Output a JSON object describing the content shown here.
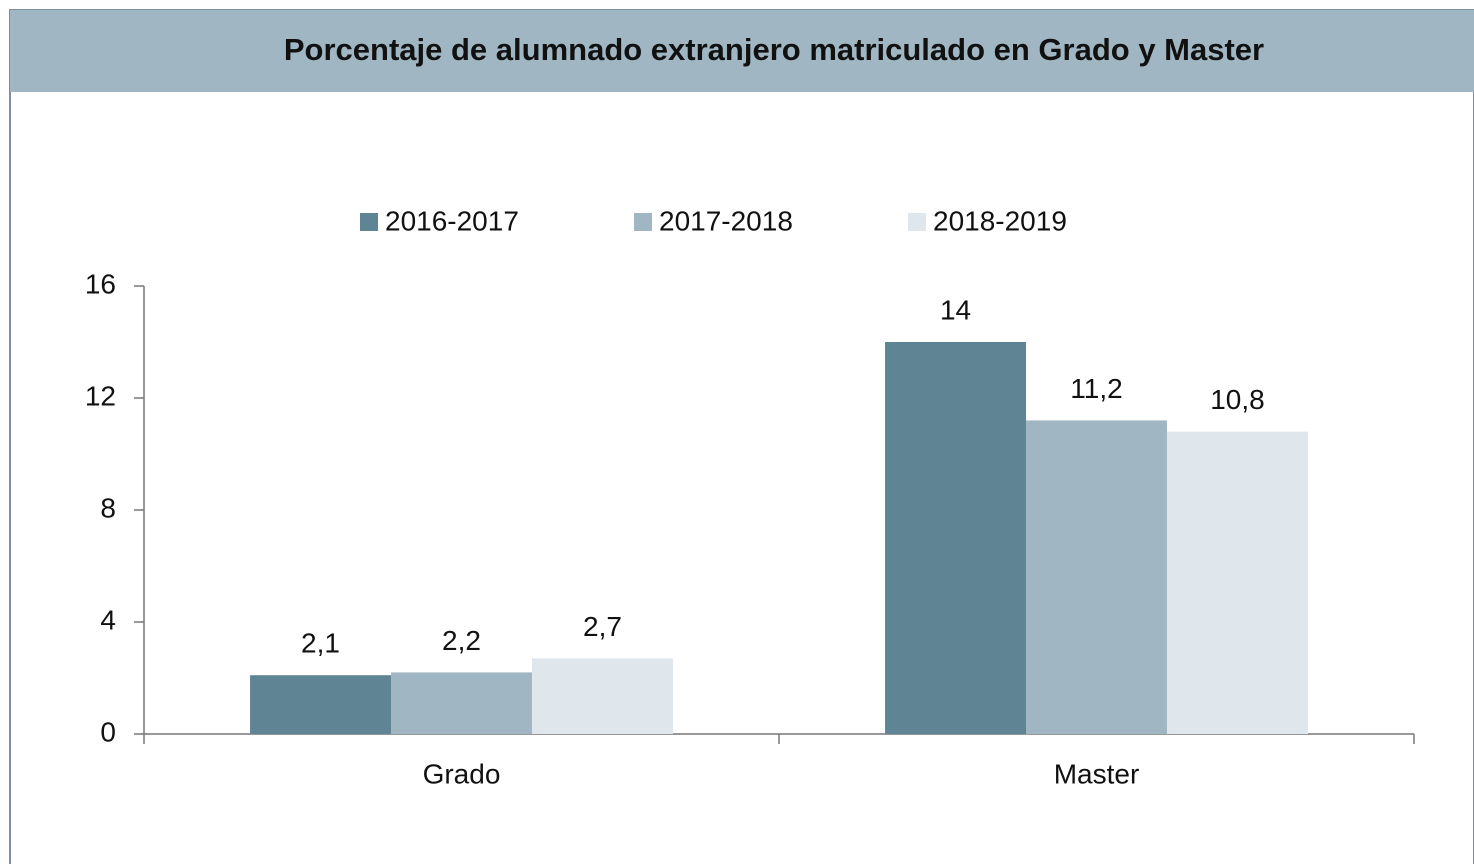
{
  "chart_data": {
    "type": "bar",
    "title": "Porcentaje de alumnado extranjero matriculado en Grado y Master",
    "categories": [
      "Grado",
      "Master"
    ],
    "series": [
      {
        "name": "2016-2017",
        "color": "#5f8595",
        "values": [
          2.1,
          14
        ],
        "value_labels": [
          "2,1",
          "14"
        ]
      },
      {
        "name": "2017-2018",
        "color": "#a0b6c2",
        "values": [
          2.2,
          11.2
        ],
        "value_labels": [
          "2,2",
          "11,2"
        ]
      },
      {
        "name": "2018-2019",
        "color": "#dfe7ed",
        "values": [
          2.7,
          10.8
        ],
        "value_labels": [
          "2,7",
          "10,8"
        ]
      }
    ],
    "ylim": [
      0,
      16
    ],
    "yticks": [
      0,
      4,
      8,
      12,
      16
    ],
    "grid": false,
    "legend": "top"
  }
}
